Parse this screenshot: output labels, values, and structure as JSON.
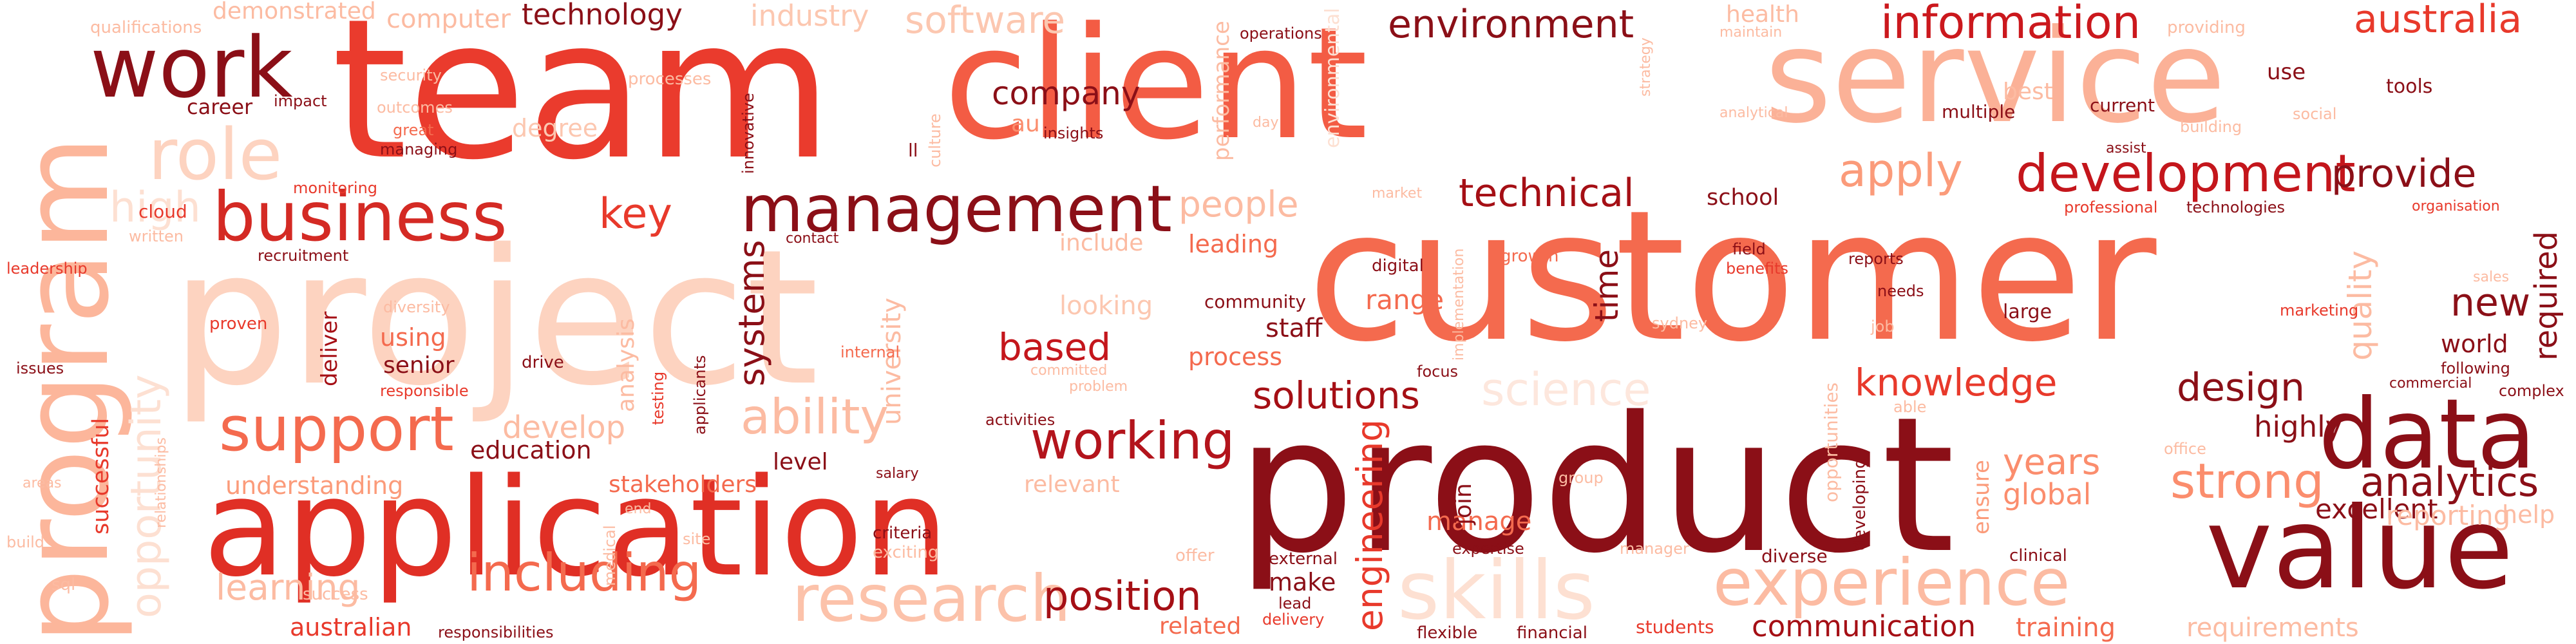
{
  "palette": {
    "dark": "#8b0f17",
    "red": "#e8392b",
    "mid": "#f47356",
    "light": "#fbb197",
    "pale": "#fdd9c7"
  },
  "words": [
    {
      "text": "team",
      "color": "#ea3b2d"
    },
    {
      "text": "client",
      "color": "#f35c44"
    },
    {
      "text": "service",
      "color": "#fbb197"
    },
    {
      "text": "project",
      "color": "#fdd3c0"
    },
    {
      "text": "customer",
      "color": "#f46a4e"
    },
    {
      "text": "product",
      "color": "#8b0f17"
    },
    {
      "text": "application",
      "color": "#e02f25"
    },
    {
      "text": "program",
      "color": "#fcb69b"
    },
    {
      "text": "value",
      "color": "#8b0f17"
    },
    {
      "text": "data",
      "color": "#8b0f17"
    },
    {
      "text": "work",
      "color": "#8b0f17"
    },
    {
      "text": "business",
      "color": "#d42a24"
    },
    {
      "text": "management",
      "color": "#8b0f17"
    },
    {
      "text": "role",
      "color": "#fdd3c0"
    },
    {
      "text": "skills",
      "color": "#fde0d2"
    },
    {
      "text": "research",
      "color": "#fcc2aa"
    },
    {
      "text": "experience",
      "color": "#fcbba2"
    },
    {
      "text": "development",
      "color": "#c4161c"
    },
    {
      "text": "information",
      "color": "#cb181d"
    },
    {
      "text": "environment",
      "color": "#8b0f17"
    },
    {
      "text": "technology",
      "color": "#8b0f17"
    },
    {
      "text": "software",
      "color": "#fcc7b0"
    },
    {
      "text": "industry",
      "color": "#fcc7b0"
    },
    {
      "text": "australia",
      "color": "#e8392b"
    },
    {
      "text": "support",
      "color": "#f46a4e"
    },
    {
      "text": "working",
      "color": "#b3141c"
    },
    {
      "text": "including",
      "color": "#f46a4e"
    },
    {
      "text": "solutions",
      "color": "#a50f15"
    },
    {
      "text": "design",
      "color": "#8b0f17"
    },
    {
      "text": "analytics",
      "color": "#8b0f17"
    },
    {
      "text": "strong",
      "color": "#fb8d6d"
    },
    {
      "text": "provide",
      "color": "#8b0f17"
    },
    {
      "text": "apply",
      "color": "#fb9b7a"
    },
    {
      "text": "ability",
      "color": "#fcbba2"
    },
    {
      "text": "position",
      "color": "#a50f15"
    },
    {
      "text": "company",
      "color": "#8b0f17"
    },
    {
      "text": "technical",
      "color": "#a50f15"
    },
    {
      "text": "people",
      "color": "#fcbba2"
    },
    {
      "text": "high",
      "color": "#fde0d2"
    },
    {
      "text": "key",
      "color": "#e8392b"
    },
    {
      "text": "based",
      "color": "#c4161c"
    },
    {
      "text": "knowledge",
      "color": "#e8392b"
    },
    {
      "text": "opportunity",
      "color": "#fde0d2"
    },
    {
      "text": "science",
      "color": "#fde7dd"
    },
    {
      "text": "systems",
      "color": "#8b0f17"
    },
    {
      "text": "university",
      "color": "#fcbba2"
    },
    {
      "text": "engineering",
      "color": "#e8392b"
    },
    {
      "text": "quality",
      "color": "#fcbba2"
    },
    {
      "text": "new",
      "color": "#8b0f17"
    },
    {
      "text": "required",
      "color": "#8b0f17"
    },
    {
      "text": "world",
      "color": "#8b0f17"
    },
    {
      "text": "time",
      "color": "#8b0f17"
    },
    {
      "text": "years",
      "color": "#fb8d6d"
    },
    {
      "text": "global",
      "color": "#fb8d6d"
    },
    {
      "text": "excellent",
      "color": "#8b0f17"
    },
    {
      "text": "highly",
      "color": "#8b0f17"
    },
    {
      "text": "communication",
      "color": "#a50f15"
    },
    {
      "text": "training",
      "color": "#f46a4e"
    },
    {
      "text": "requirements",
      "color": "#fcbba2"
    },
    {
      "text": "manage",
      "color": "#f46a4e"
    },
    {
      "text": "understanding",
      "color": "#fb9b7a"
    },
    {
      "text": "stakeholders",
      "color": "#f46a4e"
    },
    {
      "text": "education",
      "color": "#8b0f17"
    },
    {
      "text": "develop",
      "color": "#fcbba2"
    },
    {
      "text": "successful",
      "color": "#e8392b"
    },
    {
      "text": "learning",
      "color": "#fcbba2"
    },
    {
      "text": "australian",
      "color": "#e8392b"
    },
    {
      "text": "leading",
      "color": "#f46a4e"
    },
    {
      "text": "include",
      "color": "#fcbba2"
    },
    {
      "text": "looking",
      "color": "#fcc7b0"
    },
    {
      "text": "process",
      "color": "#f46a4e"
    },
    {
      "text": "staff",
      "color": "#8b0f17"
    },
    {
      "text": "range",
      "color": "#f46a4e"
    },
    {
      "text": "community",
      "color": "#8b0f17"
    },
    {
      "text": "ensure",
      "color": "#fb9b7a"
    },
    {
      "text": "make",
      "color": "#8b0f17"
    },
    {
      "text": "relevant",
      "color": "#fcbba2"
    },
    {
      "text": "related",
      "color": "#f46a4e"
    },
    {
      "text": "level",
      "color": "#8b0f17"
    },
    {
      "text": "career",
      "color": "#8b0f17"
    },
    {
      "text": "degree",
      "color": "#fcc7b0"
    },
    {
      "text": "senior",
      "color": "#8b0f17"
    },
    {
      "text": "using",
      "color": "#f46a4e"
    },
    {
      "text": "school",
      "color": "#8b0f17"
    },
    {
      "text": "join",
      "color": "#8b0f17"
    },
    {
      "text": "deliver",
      "color": "#a50f15"
    },
    {
      "text": "analysis",
      "color": "#fcbba2"
    },
    {
      "text": "health",
      "color": "#fcbba2"
    },
    {
      "text": "use",
      "color": "#8b0f17"
    },
    {
      "text": "tools",
      "color": "#8b0f17"
    },
    {
      "text": "best",
      "color": "#fcbba2"
    },
    {
      "text": "current",
      "color": "#8b0f17"
    },
    {
      "text": "multiple",
      "color": "#8b0f17"
    },
    {
      "text": "diverse",
      "color": "#8b0f17"
    },
    {
      "text": "developing",
      "color": "#8b0f17"
    },
    {
      "text": "au",
      "color": "#fb8d6d"
    },
    {
      "text": "insights",
      "color": "#8b0f17"
    },
    {
      "text": "criteria",
      "color": "#8b0f17"
    },
    {
      "text": "exciting",
      "color": "#fcbba2"
    },
    {
      "text": "salary",
      "color": "#8b0f17"
    },
    {
      "text": "activities",
      "color": "#8b0f17"
    },
    {
      "text": "digital",
      "color": "#8b0f17"
    },
    {
      "text": "growth",
      "color": "#f46a4e"
    },
    {
      "text": "field",
      "color": "#8b0f17"
    },
    {
      "text": "benefits",
      "color": "#e8392b"
    },
    {
      "text": "reports",
      "color": "#8b0f17"
    },
    {
      "text": "needs",
      "color": "#8b0f17"
    },
    {
      "text": "large",
      "color": "#8b0f17"
    },
    {
      "text": "focus",
      "color": "#8b0f17"
    },
    {
      "text": "implementation",
      "color": "#fcbba2"
    },
    {
      "text": "contact",
      "color": "#8b0f17"
    },
    {
      "text": "market",
      "color": "#fcbba2"
    },
    {
      "text": "performance",
      "color": "#fcbba2"
    },
    {
      "text": "environmental",
      "color": "#fde0d2"
    },
    {
      "text": "day",
      "color": "#fcbba2"
    },
    {
      "text": "operations",
      "color": "#8b0f17"
    },
    {
      "text": "maintain",
      "color": "#fcbba2"
    },
    {
      "text": "analytical",
      "color": "#fcbba2"
    },
    {
      "text": "providing",
      "color": "#fcbba2"
    },
    {
      "text": "social",
      "color": "#fcbba2"
    },
    {
      "text": "professional",
      "color": "#e8392b"
    },
    {
      "text": "technologies",
      "color": "#8b0f17"
    },
    {
      "text": "organisation",
      "color": "#e8392b"
    },
    {
      "text": "sales",
      "color": "#fcbba2"
    },
    {
      "text": "marketing",
      "color": "#e8392b"
    },
    {
      "text": "following",
      "color": "#8b0f17"
    },
    {
      "text": "commercial",
      "color": "#8b0f17"
    },
    {
      "text": "complex",
      "color": "#8b0f17"
    },
    {
      "text": "reporting",
      "color": "#fcbba2"
    },
    {
      "text": "help",
      "color": "#fcbba2"
    },
    {
      "text": "office",
      "color": "#fcbba2"
    },
    {
      "text": "clinical",
      "color": "#8b0f17"
    },
    {
      "text": "students",
      "color": "#e8392b"
    },
    {
      "text": "financial",
      "color": "#8b0f17"
    },
    {
      "text": "flexible",
      "color": "#8b0f17"
    },
    {
      "text": "expertise",
      "color": "#8b0f17"
    },
    {
      "text": "manager",
      "color": "#fcbba2"
    },
    {
      "text": "external",
      "color": "#8b0f17"
    },
    {
      "text": "lead",
      "color": "#8b0f17"
    },
    {
      "text": "delivery",
      "color": "#e8392b"
    },
    {
      "text": "offer",
      "color": "#fcbba2"
    },
    {
      "text": "site",
      "color": "#fcbba2"
    },
    {
      "text": "end",
      "color": "#fcbba2"
    },
    {
      "text": "medical",
      "color": "#fcbba2"
    },
    {
      "text": "responsibilities",
      "color": "#8b0f17"
    },
    {
      "text": "success",
      "color": "#fcbba2"
    },
    {
      "text": "sql",
      "color": "#fcbba2"
    },
    {
      "text": "build",
      "color": "#fcbba2"
    },
    {
      "text": "areas",
      "color": "#fcbba2"
    },
    {
      "text": "issues",
      "color": "#8b0f17"
    },
    {
      "text": "leadership",
      "color": "#e8392b"
    },
    {
      "text": "relationships",
      "color": "#fcbba2"
    },
    {
      "text": "proven",
      "color": "#e8392b"
    },
    {
      "text": "diversity",
      "color": "#fcbba2"
    },
    {
      "text": "recruitment",
      "color": "#8b0f17"
    },
    {
      "text": "written",
      "color": "#fcbba2"
    },
    {
      "text": "cloud",
      "color": "#e8392b"
    },
    {
      "text": "monitoring",
      "color": "#e8392b"
    },
    {
      "text": "managing",
      "color": "#8b0f17"
    },
    {
      "text": "great",
      "color": "#f46a4e"
    },
    {
      "text": "outcomes",
      "color": "#fcbba2"
    },
    {
      "text": "impact",
      "color": "#8b0f17"
    },
    {
      "text": "security",
      "color": "#fcbba2"
    },
    {
      "text": "qualifications",
      "color": "#fcbba2"
    },
    {
      "text": "demonstrated",
      "color": "#fcbba2"
    },
    {
      "text": "computer",
      "color": "#fcbba2"
    },
    {
      "text": "processes",
      "color": "#fcbba2"
    },
    {
      "text": "innovative",
      "color": "#8b0f17"
    },
    {
      "text": "culture",
      "color": "#fcbba2"
    },
    {
      "text": "ll",
      "color": "#8b0f17"
    },
    {
      "text": "testing",
      "color": "#e8392b"
    },
    {
      "text": "applicants",
      "color": "#8b0f17"
    },
    {
      "text": "committed",
      "color": "#fcbba2"
    },
    {
      "text": "problem",
      "color": "#fcbba2"
    },
    {
      "text": "internal",
      "color": "#f46a4e"
    },
    {
      "text": "drive",
      "color": "#8b0f17"
    },
    {
      "text": "responsible",
      "color": "#e8392b"
    },
    {
      "text": "strategy",
      "color": "#fcbba2"
    },
    {
      "text": "opportunities",
      "color": "#fcbba2"
    },
    {
      "text": "able",
      "color": "#fcbba2"
    },
    {
      "text": "job",
      "color": "#fcbba2"
    },
    {
      "text": "sydney",
      "color": "#fcbba2"
    },
    {
      "text": "group",
      "color": "#fcbba2"
    },
    {
      "text": "assist",
      "color": "#8b0f17"
    },
    {
      "text": "building",
      "color": "#fcbba2"
    }
  ]
}
